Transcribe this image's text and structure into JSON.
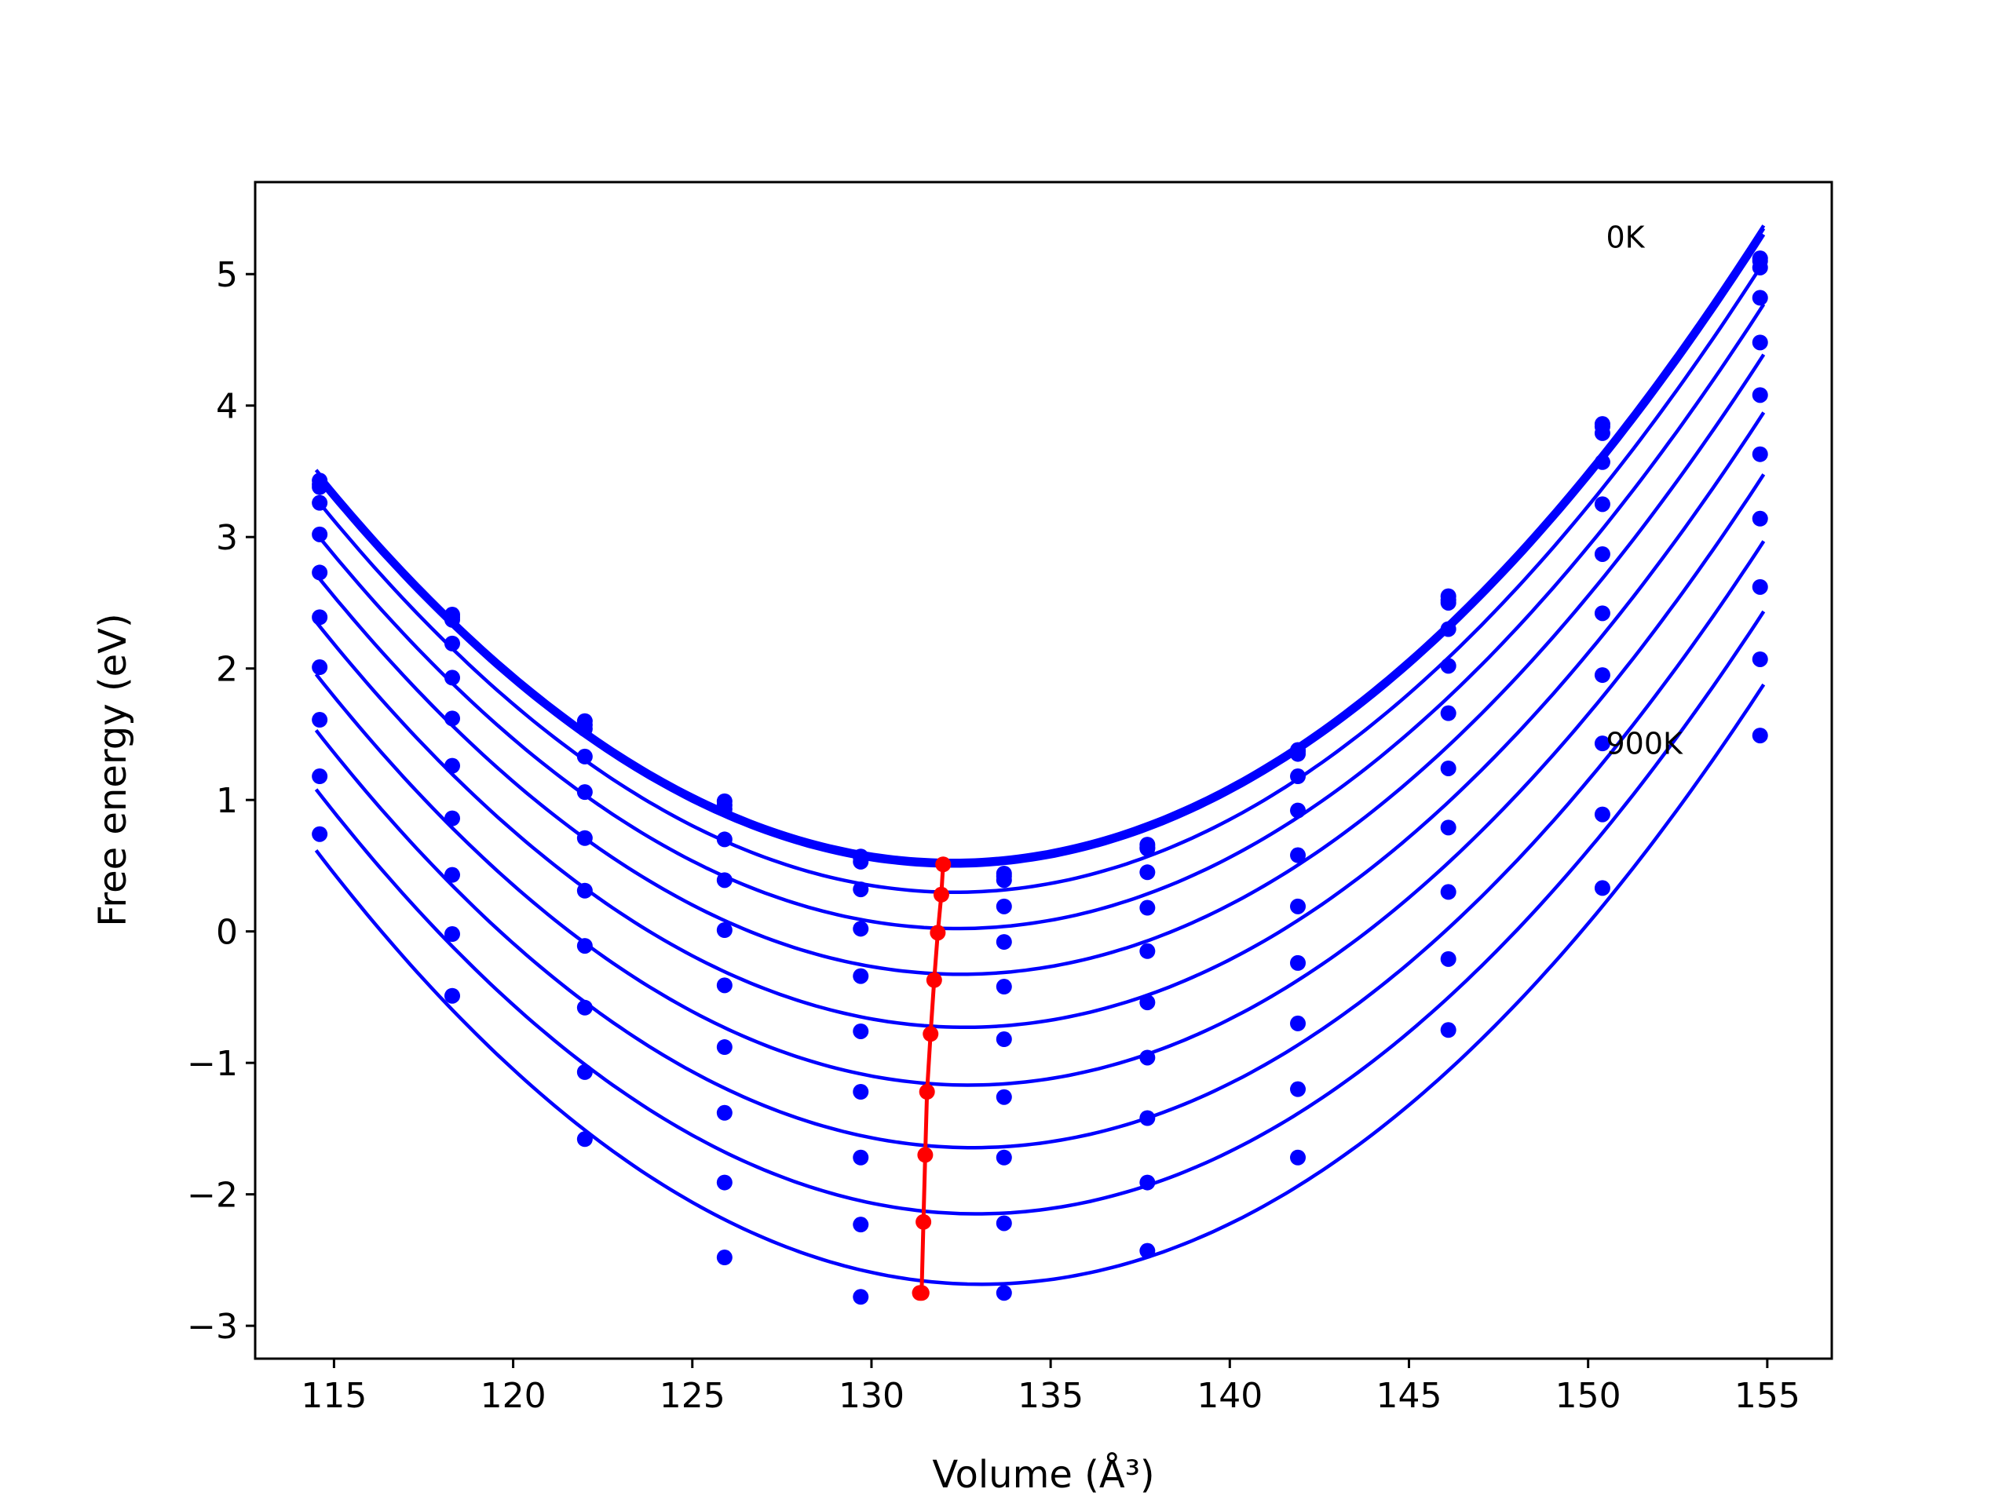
{
  "chart_data": {
    "type": "line",
    "title": "",
    "xlabel": "Volume (Å³)",
    "ylabel": "Free energy (eV)",
    "xlim": [
      112.8,
      156.8
    ],
    "ylim": [
      -3.25,
      5.7
    ],
    "xticks": [
      "115",
      "120",
      "125",
      "130",
      "135",
      "140",
      "145",
      "150",
      "155"
    ],
    "yticks": [
      "−3",
      "−2",
      "−1",
      "0",
      "1",
      "2",
      "3",
      "4",
      "5"
    ],
    "grid": false,
    "legend": "none",
    "annotations": [
      {
        "text": "0K",
        "x": 150.5,
        "y": 5.2
      },
      {
        "text": "900K",
        "x": 150.5,
        "y": 1.35
      }
    ],
    "x": [
      114.6,
      118.3,
      122.0,
      125.9,
      129.7,
      133.7,
      137.7,
      141.9,
      146.1,
      150.4,
      154.8
    ],
    "series": [
      {
        "y": [
          3.43,
          2.41,
          1.6,
          0.99,
          0.57,
          0.44,
          0.66,
          1.38,
          2.55,
          3.86,
          5.12
        ]
      },
      {
        "y": [
          3.4,
          2.39,
          1.57,
          0.96,
          0.56,
          0.42,
          0.64,
          1.37,
          2.52,
          3.84,
          5.1
        ]
      },
      {
        "y": [
          3.38,
          2.37,
          1.54,
          0.93,
          0.53,
          0.39,
          0.63,
          1.35,
          2.5,
          3.79,
          5.05
        ]
      },
      {
        "y": [
          3.26,
          2.19,
          1.33,
          0.7,
          0.32,
          0.19,
          0.45,
          1.18,
          2.3,
          3.57,
          4.82
        ]
      },
      {
        "y": [
          3.02,
          1.93,
          1.06,
          0.39,
          0.02,
          -0.08,
          0.18,
          0.92,
          2.02,
          3.25,
          4.48
        ]
      },
      {
        "y": [
          2.73,
          1.62,
          0.71,
          0.01,
          -0.34,
          -0.42,
          -0.15,
          0.58,
          1.66,
          2.87,
          4.08
        ]
      },
      {
        "y": [
          2.39,
          1.26,
          0.31,
          -0.41,
          -0.76,
          -0.82,
          -0.54,
          0.19,
          1.24,
          2.42,
          3.63
        ]
      },
      {
        "y": [
          2.01,
          0.86,
          -0.11,
          -0.88,
          -1.22,
          -1.26,
          -0.96,
          -0.24,
          0.79,
          1.95,
          3.14
        ]
      },
      {
        "y": [
          1.61,
          0.43,
          -0.58,
          -1.38,
          -1.72,
          -1.72,
          -1.42,
          -0.7,
          0.3,
          1.43,
          2.62
        ]
      },
      {
        "y": [
          1.18,
          -0.02,
          -1.07,
          -1.91,
          -2.23,
          -2.22,
          -1.91,
          -1.2,
          -0.21,
          0.89,
          2.07
        ]
      },
      {
        "y": [
          0.74,
          -0.49,
          -1.58,
          -2.48,
          -2.78,
          -2.75,
          -2.43,
          -1.72,
          -0.75,
          0.33,
          1.49
        ]
      }
    ],
    "minimum_curve": {
      "x": [
        132.0,
        131.95,
        131.85,
        131.75,
        131.65,
        131.55,
        131.5,
        131.45,
        131.4,
        131.35
      ],
      "y": [
        0.51,
        0.28,
        -0.01,
        -0.37,
        -0.78,
        -1.22,
        -1.7,
        -2.21,
        -2.75,
        -2.75
      ]
    },
    "colors": {
      "data": "#0000ff",
      "minimum": "#ff0000",
      "axes": "#000000"
    }
  }
}
